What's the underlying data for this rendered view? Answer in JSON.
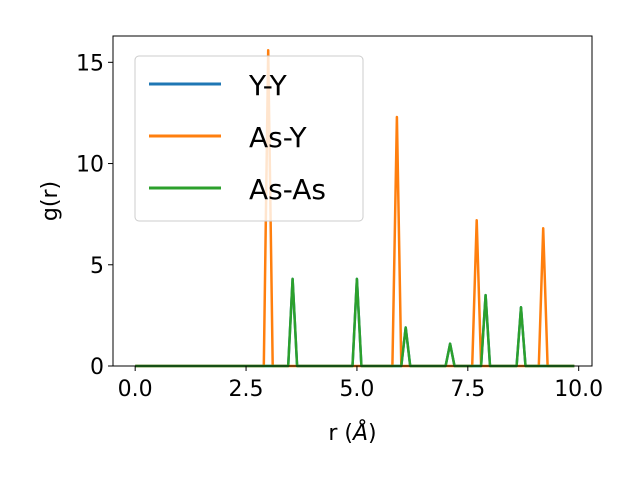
{
  "chart_data": {
    "type": "line",
    "title": "",
    "xlabel": "r (",
    "xlabel_unit": "Å",
    "xlabel_close": ")",
    "ylabel": "g(r)",
    "xlim": [
      -0.5,
      10.3
    ],
    "ylim": [
      0,
      16.3
    ],
    "xticks": [
      0.0,
      2.5,
      5.0,
      7.5,
      10.0
    ],
    "xtick_labels": [
      "0.0",
      "2.5",
      "5.0",
      "7.5",
      "10.0"
    ],
    "yticks": [
      0,
      5,
      10,
      15
    ],
    "ytick_labels": [
      "0",
      "5",
      "10",
      "15"
    ],
    "grid": false,
    "legend_position": "upper-left",
    "series": [
      {
        "name": "Y-Y",
        "color": "#1f77b4",
        "x": [
          0.0,
          3.45,
          3.55,
          3.65,
          4.9,
          5.0,
          5.1,
          6.0,
          6.1,
          6.2,
          7.0,
          7.1,
          7.2,
          7.8,
          7.9,
          8.0,
          8.6,
          8.7,
          8.8,
          9.9
        ],
        "y": [
          0,
          0,
          4.3,
          0,
          0,
          4.3,
          0,
          0,
          1.9,
          0,
          0,
          1.1,
          0,
          0,
          3.5,
          0,
          0,
          2.9,
          0,
          0
        ]
      },
      {
        "name": "As-Y",
        "color": "#ff7f0e",
        "x": [
          0.0,
          2.9,
          3.0,
          3.1,
          5.8,
          5.9,
          6.0,
          7.6,
          7.7,
          7.8,
          9.1,
          9.2,
          9.3,
          9.9
        ],
        "y": [
          0,
          0,
          15.6,
          0,
          0,
          12.3,
          0,
          0,
          7.2,
          0,
          0,
          6.8,
          0,
          0
        ]
      },
      {
        "name": "As-As",
        "color": "#2ca02c",
        "x": [
          0.0,
          3.45,
          3.55,
          3.65,
          4.9,
          5.0,
          5.1,
          6.0,
          6.1,
          6.2,
          7.0,
          7.1,
          7.2,
          7.8,
          7.9,
          8.0,
          8.6,
          8.7,
          8.8,
          9.9
        ],
        "y": [
          0,
          0,
          4.3,
          0,
          0,
          4.3,
          0,
          0,
          1.9,
          0,
          0,
          1.1,
          0,
          0,
          3.5,
          0,
          0,
          2.9,
          0,
          0
        ]
      }
    ]
  }
}
